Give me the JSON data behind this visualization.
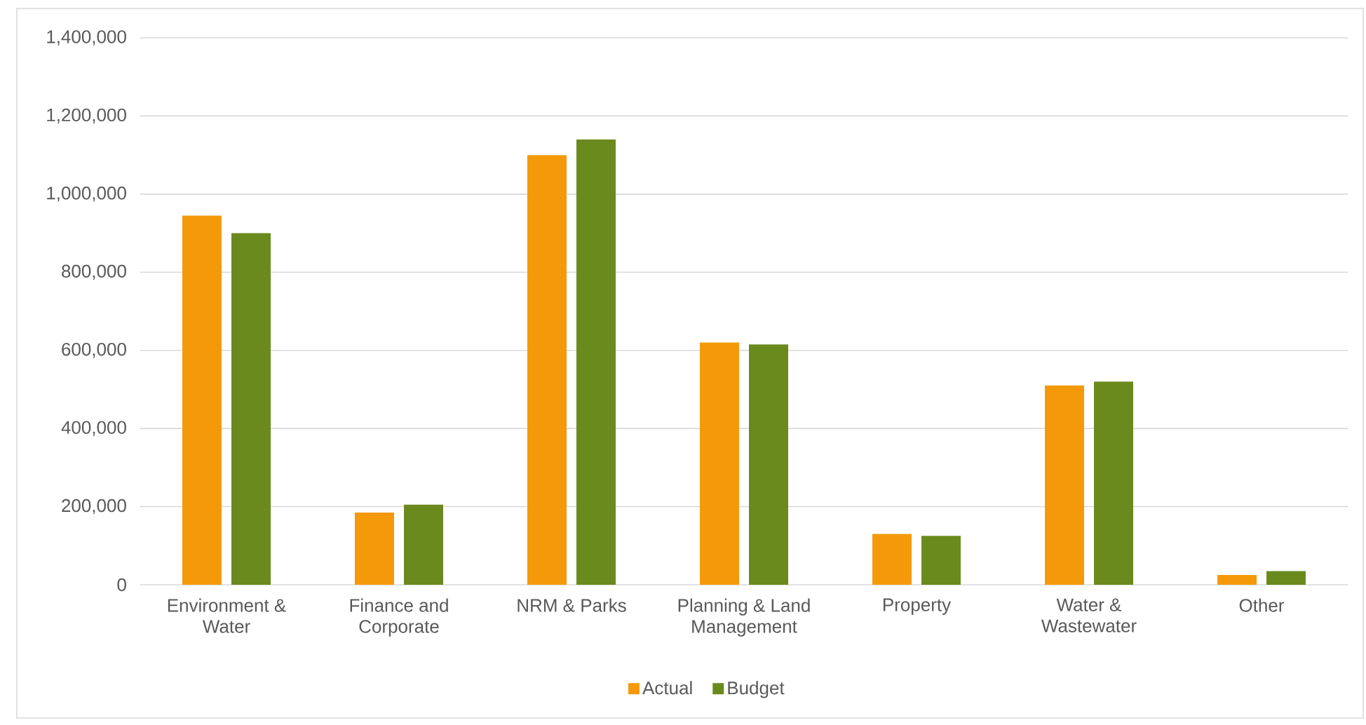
{
  "chart_data": {
    "type": "bar",
    "categories": [
      "Environment & Water",
      "Finance and Corporate",
      "NRM & Parks",
      "Planning & Land Management",
      "Property",
      "Water & Wastewater",
      "Other"
    ],
    "series": [
      {
        "name": "Actual",
        "color": "#f49a0a",
        "values": [
          945000,
          185000,
          1100000,
          620000,
          130000,
          510000,
          25000
        ]
      },
      {
        "name": "Budget",
        "color": "#6b8a1e",
        "values": [
          900000,
          205000,
          1140000,
          615000,
          125000,
          520000,
          35000
        ]
      }
    ],
    "ylim": [
      0,
      1400000
    ],
    "yticks": [
      0,
      {
        "value": 200000,
        "label": "200,000"
      },
      {
        "value": 400000,
        "label": "400,000"
      },
      {
        "value": 600000,
        "label": "600,000"
      },
      {
        "value": 800000,
        "label": "800,000"
      },
      {
        "value": 1000000,
        "label": "1,000,000"
      },
      {
        "value": 1200000,
        "label": "1,200,000"
      },
      {
        "value": 1400000,
        "label": "1,400,000"
      }
    ],
    "grid": "y",
    "legend": "bottom"
  }
}
